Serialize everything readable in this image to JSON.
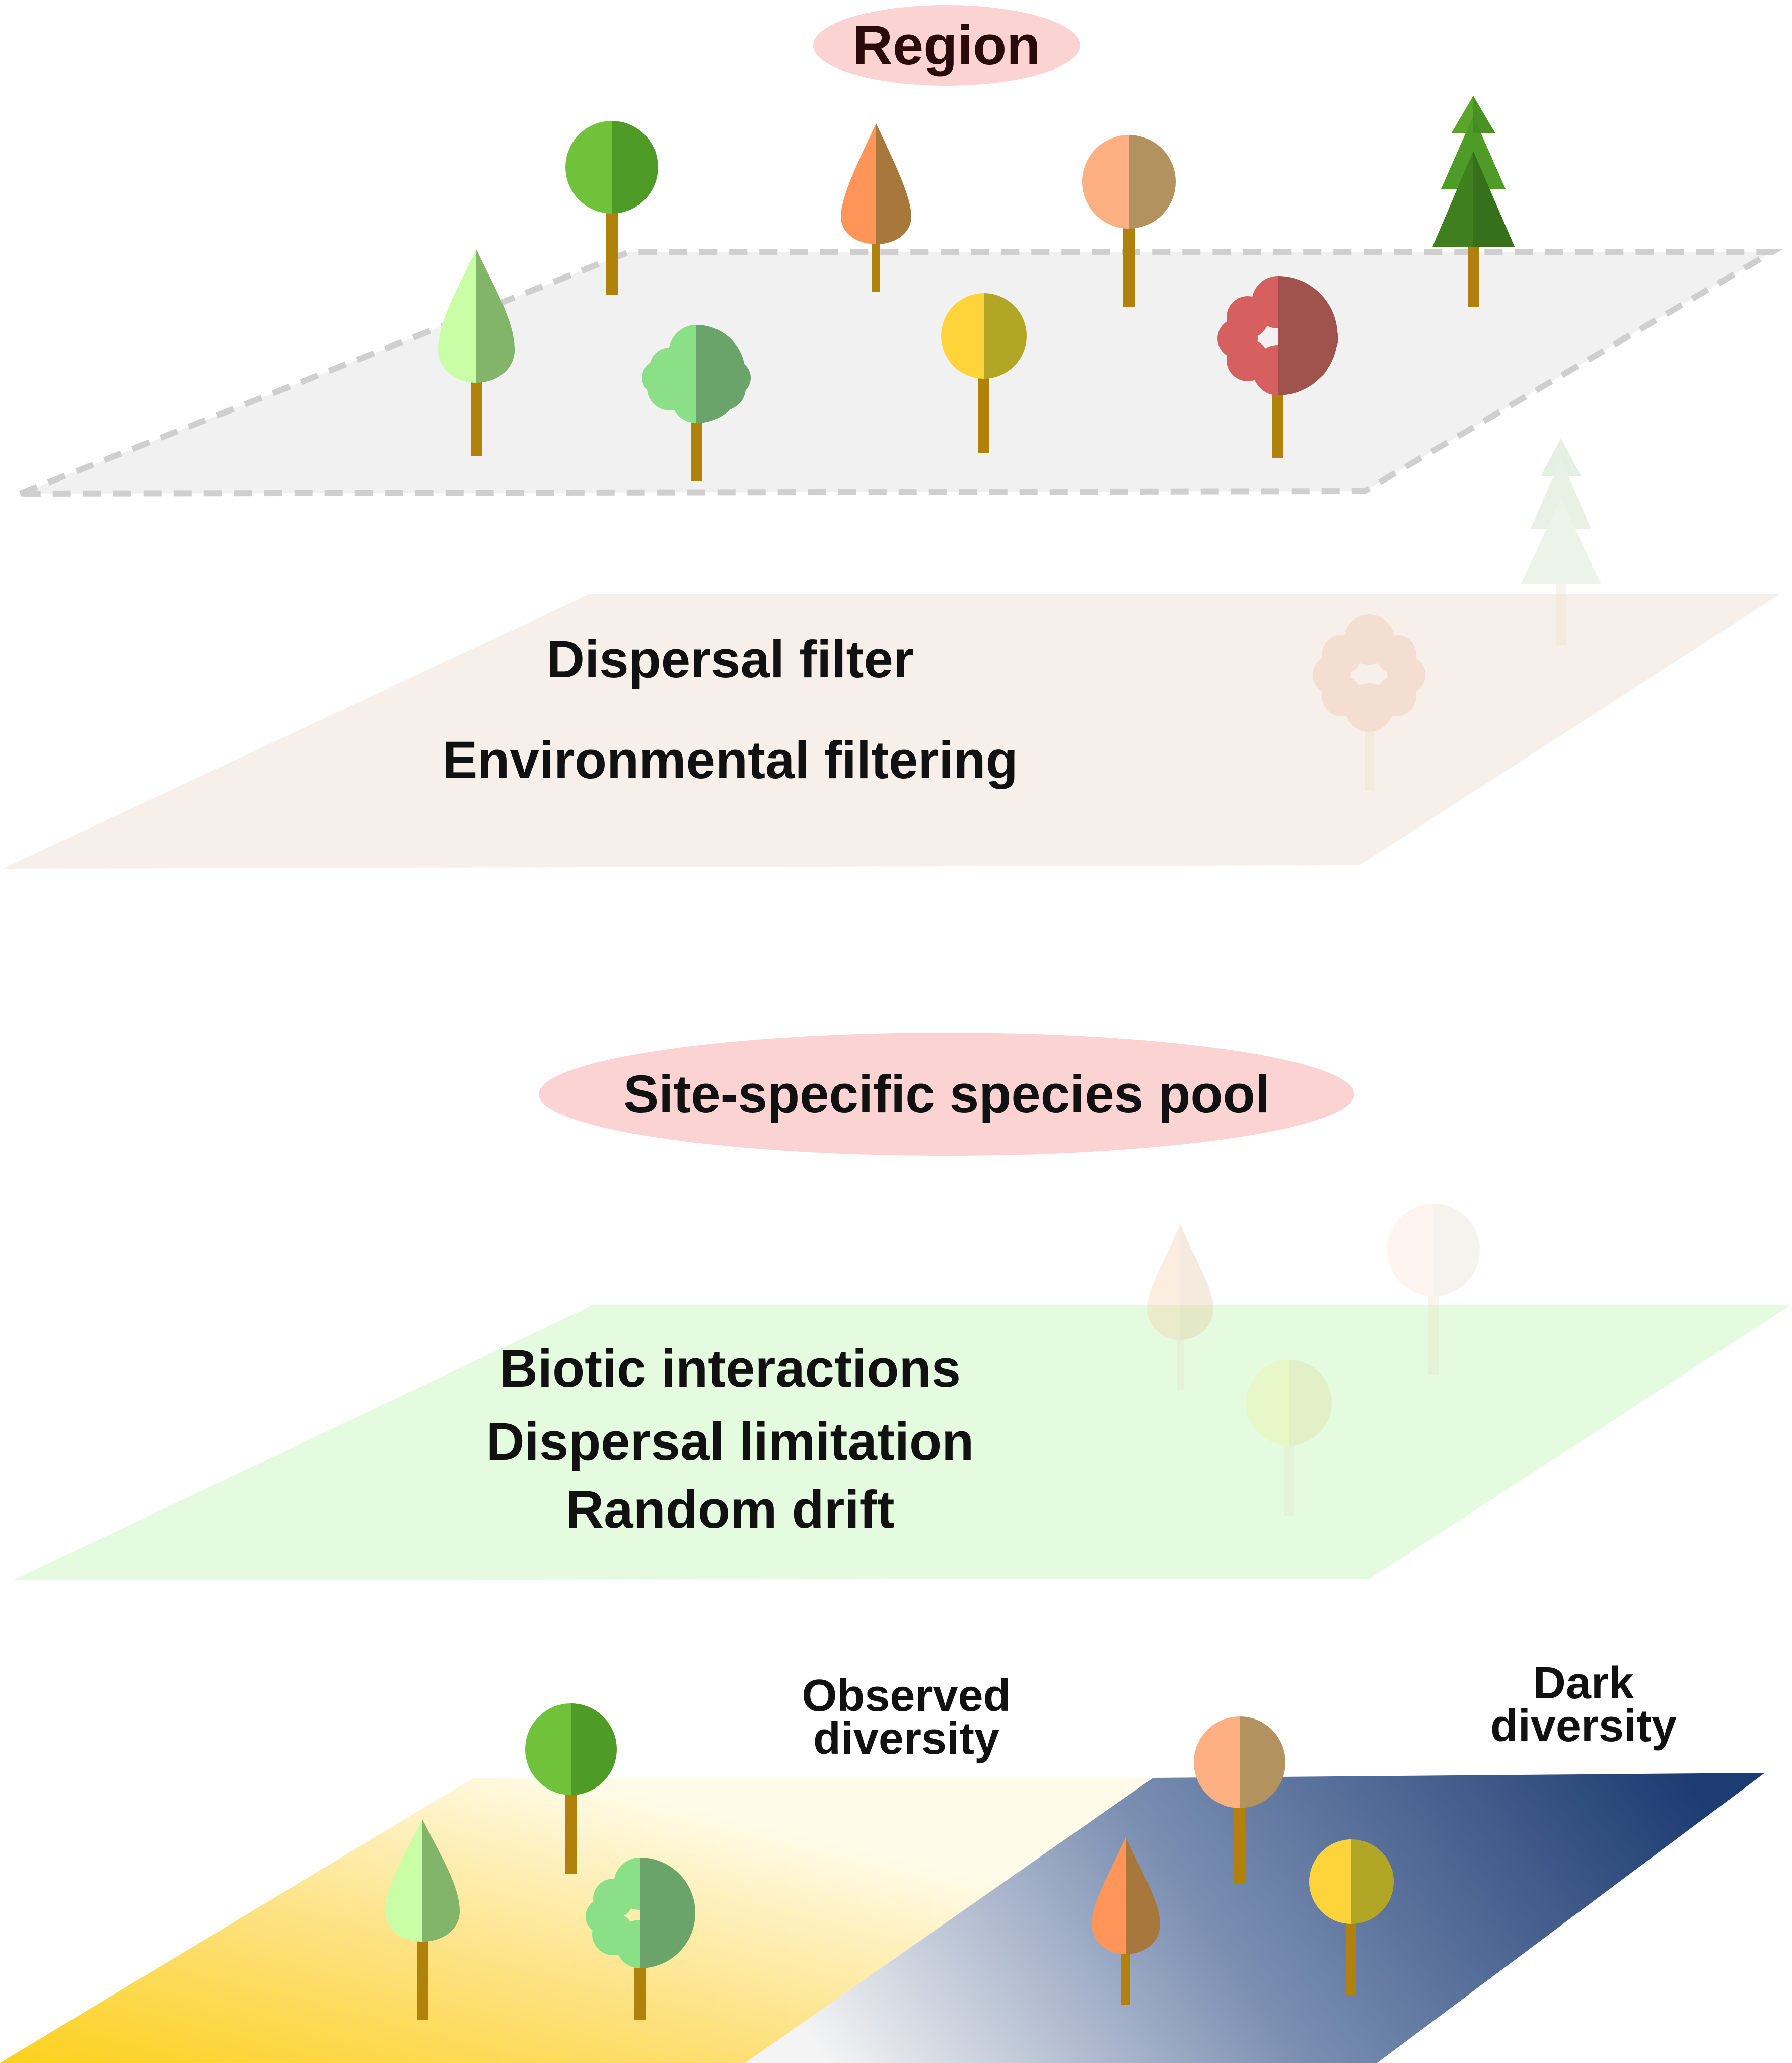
{
  "title": "Region",
  "pool_label": "Site-specific species pool",
  "filter_layer": {
    "lines": [
      "Dispersal filter",
      "Environmental filtering"
    ]
  },
  "site_layer": {
    "lines": [
      "Biotic interactions",
      "Dispersal limitation",
      "Random drift"
    ]
  },
  "observed_label": [
    "Observed",
    "diversity"
  ],
  "dark_label": [
    "Dark",
    "diversity"
  ],
  "colors": {
    "pill": "#fbd3d3",
    "region_plane": "#f1f1f1",
    "filter_plane": "#f7efe9",
    "site_plane": "#e4fbdf",
    "observed_gradient_start": "#fcd11c",
    "dark_gradient_end": "#1d3c72",
    "trunk": "#b0820b"
  },
  "icons": [
    "tree-icon",
    "pine-tree-icon",
    "bushy-tree-icon",
    "cone-tree-icon",
    "round-tree-icon"
  ]
}
